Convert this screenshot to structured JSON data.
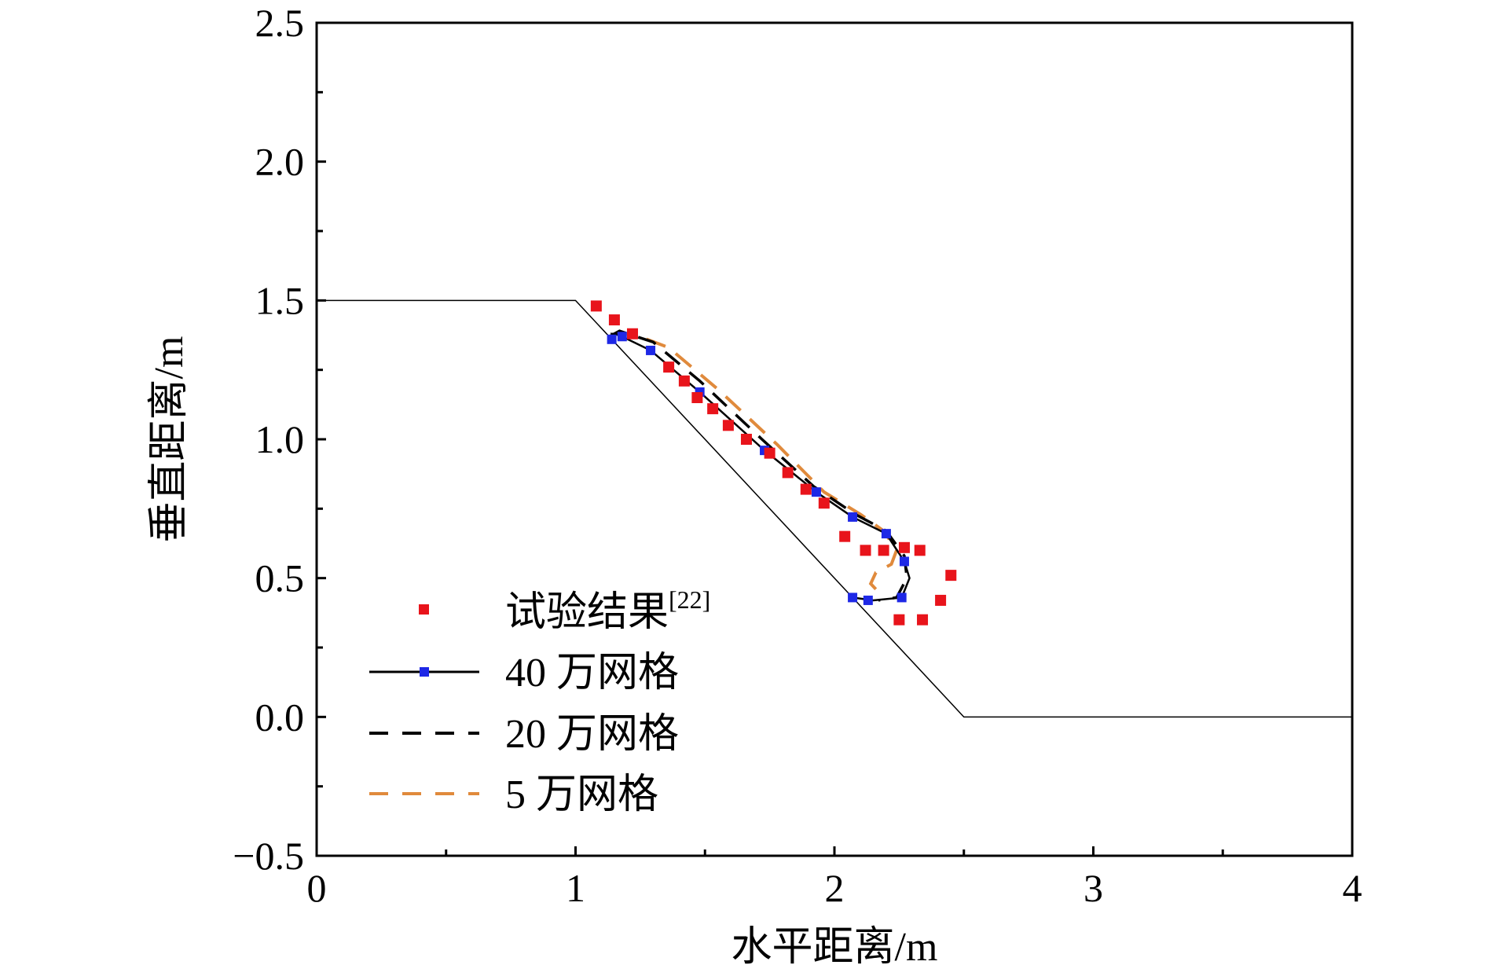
{
  "chart_data": {
    "type": "scatter",
    "title": "",
    "xlabel": "水平距离/m",
    "ylabel": "垂直距离/m",
    "xlim": [
      0,
      4
    ],
    "ylim": [
      -0.5,
      2.5
    ],
    "x_ticks": [
      0,
      1,
      2,
      3,
      4
    ],
    "x_tick_labels": [
      "0",
      "1",
      "2",
      "3",
      "4"
    ],
    "y_ticks": [
      -0.5,
      0.0,
      0.5,
      1.0,
      1.5,
      2.0,
      2.5
    ],
    "y_tick_labels": [
      "−0.5",
      "0.0",
      "0.5",
      "1.0",
      "1.5",
      "2.0",
      "2.5"
    ],
    "grid": false,
    "legend_position": "bottom-left",
    "slope_profile": {
      "x": [
        0,
        1,
        2.5,
        4
      ],
      "y": [
        1.5,
        1.5,
        0,
        0
      ]
    },
    "series": [
      {
        "name": "试验结果",
        "name_superscript": "[22]",
        "style": "markers",
        "color": "#e8141b",
        "x": [
          1.08,
          1.15,
          1.22,
          1.36,
          1.42,
          1.47,
          1.53,
          1.59,
          1.66,
          1.75,
          1.82,
          1.89,
          1.96,
          2.04,
          2.12,
          2.19,
          2.27,
          2.33,
          2.45,
          2.41,
          2.34,
          2.25
        ],
        "y": [
          1.48,
          1.43,
          1.38,
          1.26,
          1.21,
          1.15,
          1.11,
          1.05,
          1.0,
          0.95,
          0.88,
          0.82,
          0.77,
          0.65,
          0.6,
          0.6,
          0.61,
          0.6,
          0.51,
          0.42,
          0.35,
          0.35
        ]
      },
      {
        "name": "40 万网格",
        "style": "line-markers",
        "color": "#000000",
        "marker_color": "#1e28e6",
        "x": [
          1.15,
          1.14,
          1.15,
          1.18,
          1.29,
          1.48,
          1.73,
          1.93,
          2.07,
          2.2,
          2.27,
          2.29,
          2.26,
          2.15,
          2.07
        ],
        "y": [
          1.36,
          1.38,
          1.38,
          1.37,
          1.32,
          1.17,
          0.96,
          0.81,
          0.72,
          0.66,
          0.56,
          0.5,
          0.43,
          0.42,
          0.43
        ],
        "marker_x": [
          1.14,
          1.18,
          1.29,
          1.48,
          1.73,
          1.93,
          2.07,
          2.2,
          2.27,
          2.26,
          2.13,
          2.07
        ],
        "marker_y": [
          1.36,
          1.37,
          1.32,
          1.17,
          0.96,
          0.81,
          0.72,
          0.66,
          0.56,
          0.43,
          0.42,
          0.43
        ]
      },
      {
        "name": "20 万网格",
        "style": "dashed",
        "color": "#000000",
        "x": [
          1.13,
          1.17,
          1.3,
          1.48,
          1.72,
          1.92,
          2.08,
          2.2,
          2.27,
          2.28,
          2.24,
          2.17
        ],
        "y": [
          1.37,
          1.39,
          1.35,
          1.21,
          1.0,
          0.83,
          0.73,
          0.67,
          0.58,
          0.5,
          0.43,
          0.42
        ]
      },
      {
        "name": "5 万网格",
        "style": "dashed",
        "color": "#e08a3c",
        "x": [
          1.15,
          1.22,
          1.36,
          1.55,
          1.78,
          1.96,
          2.1,
          2.19,
          2.24,
          2.22,
          2.16,
          2.14,
          2.16
        ],
        "y": [
          1.38,
          1.38,
          1.33,
          1.18,
          0.98,
          0.81,
          0.73,
          0.67,
          0.6,
          0.55,
          0.52,
          0.48,
          0.46
        ]
      }
    ]
  }
}
